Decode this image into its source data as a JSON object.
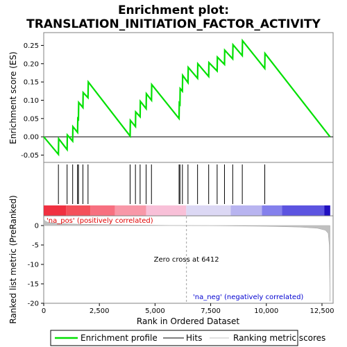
{
  "chart_data": {
    "type": "line",
    "title_line1": "Enrichment plot:",
    "title_line2": "TRANSLATION_INITIATION_FACTOR_ACTIVITY",
    "top_panel": {
      "ylabel": "Enrichment score (ES)",
      "ylim": [
        -0.07,
        0.285
      ],
      "yticks": [
        -0.05,
        0.0,
        0.05,
        0.1,
        0.15,
        0.2,
        0.25
      ],
      "ytick_labels": [
        "-0.05",
        "0.00",
        "0.05",
        "0.10",
        "0.15",
        "0.20",
        "0.25"
      ],
      "zero_line": true
    },
    "bottom_panel": {
      "ylabel": "Ranked list metric (PreRanked)",
      "xlabel": "Rank in Ordered Dataset",
      "ylim": [
        -20,
        2.5
      ],
      "yticks": [
        0,
        -5,
        -10,
        -15,
        -20
      ],
      "ytick_labels": [
        "0",
        "-5",
        "-10",
        "-15",
        "-20"
      ],
      "xlim": [
        0,
        13000
      ],
      "xticks": [
        0,
        2500,
        5000,
        7500,
        10000,
        12500
      ],
      "xtick_labels": [
        "0",
        "2,500",
        "5,000",
        "7,500",
        "10,000",
        "12,500"
      ],
      "zero_cross_rank": 6412,
      "zero_cross_label": "Zero cross at 6412",
      "pos_label": "'na_pos' (positively correlated)",
      "neg_label": "'na_neg' (negatively correlated)",
      "metric_profile": [
        {
          "x": 0,
          "y": 1.8
        },
        {
          "x": 50,
          "y": 1.2
        },
        {
          "x": 200,
          "y": 0.8
        },
        {
          "x": 600,
          "y": 0.55
        },
        {
          "x": 1500,
          "y": 0.35
        },
        {
          "x": 3000,
          "y": 0.2
        },
        {
          "x": 4500,
          "y": 0.1
        },
        {
          "x": 6412,
          "y": 0.0
        },
        {
          "x": 8000,
          "y": -0.08
        },
        {
          "x": 10000,
          "y": -0.2
        },
        {
          "x": 11500,
          "y": -0.4
        },
        {
          "x": 12300,
          "y": -0.7
        },
        {
          "x": 12650,
          "y": -1.2
        },
        {
          "x": 12780,
          "y": -2.0
        },
        {
          "x": 12830,
          "y": -5.0
        },
        {
          "x": 12860,
          "y": -19.5
        }
      ]
    },
    "series": [
      {
        "name": "Enrichment profile",
        "color": "#00e000",
        "points": [
          {
            "x": 0,
            "y": 0.0
          },
          {
            "x": 660,
            "y": -0.048
          },
          {
            "x": 670,
            "y": -0.005
          },
          {
            "x": 1050,
            "y": -0.035
          },
          {
            "x": 1060,
            "y": 0.005
          },
          {
            "x": 1300,
            "y": -0.012
          },
          {
            "x": 1310,
            "y": 0.028
          },
          {
            "x": 1520,
            "y": 0.012
          },
          {
            "x": 1530,
            "y": 0.05
          },
          {
            "x": 1560,
            "y": 0.048
          },
          {
            "x": 1570,
            "y": 0.094
          },
          {
            "x": 1760,
            "y": 0.08
          },
          {
            "x": 1770,
            "y": 0.121
          },
          {
            "x": 1990,
            "y": 0.107
          },
          {
            "x": 2000,
            "y": 0.15
          },
          {
            "x": 3880,
            "y": 0.002
          },
          {
            "x": 3890,
            "y": 0.045
          },
          {
            "x": 4120,
            "y": 0.028
          },
          {
            "x": 4130,
            "y": 0.068
          },
          {
            "x": 4330,
            "y": 0.055
          },
          {
            "x": 4340,
            "y": 0.097
          },
          {
            "x": 4600,
            "y": 0.077
          },
          {
            "x": 4610,
            "y": 0.118
          },
          {
            "x": 4840,
            "y": 0.1
          },
          {
            "x": 4850,
            "y": 0.143
          },
          {
            "x": 6080,
            "y": 0.05
          },
          {
            "x": 6090,
            "y": 0.092
          },
          {
            "x": 6120,
            "y": 0.089
          },
          {
            "x": 6130,
            "y": 0.132
          },
          {
            "x": 6230,
            "y": 0.125
          },
          {
            "x": 6240,
            "y": 0.168
          },
          {
            "x": 6480,
            "y": 0.148
          },
          {
            "x": 6490,
            "y": 0.19
          },
          {
            "x": 6910,
            "y": 0.16
          },
          {
            "x": 6920,
            "y": 0.2
          },
          {
            "x": 7410,
            "y": 0.165
          },
          {
            "x": 7420,
            "y": 0.203
          },
          {
            "x": 7790,
            "y": 0.18
          },
          {
            "x": 7800,
            "y": 0.218
          },
          {
            "x": 8120,
            "y": 0.198
          },
          {
            "x": 8130,
            "y": 0.237
          },
          {
            "x": 8490,
            "y": 0.213
          },
          {
            "x": 8500,
            "y": 0.252
          },
          {
            "x": 8920,
            "y": 0.222
          },
          {
            "x": 8930,
            "y": 0.263
          },
          {
            "x": 9930,
            "y": 0.187
          },
          {
            "x": 9940,
            "y": 0.228
          },
          {
            "x": 12860,
            "y": 0.0
          }
        ]
      }
    ],
    "hits": [
      660,
      1050,
      1300,
      1520,
      1560,
      1760,
      1990,
      3880,
      4120,
      4330,
      4600,
      4840,
      6080,
      6120,
      6230,
      6480,
      6910,
      7410,
      7790,
      8120,
      8490,
      8920,
      9930
    ],
    "heat_band": [
      {
        "x0": 0,
        "x1": 1000,
        "color": "#f03040"
      },
      {
        "x0": 1000,
        "x1": 2100,
        "color": "#f4505a"
      },
      {
        "x0": 2100,
        "x1": 3200,
        "color": "#f77080"
      },
      {
        "x0": 3200,
        "x1": 4600,
        "color": "#f898a8"
      },
      {
        "x0": 4600,
        "x1": 6400,
        "color": "#f8c0d8"
      },
      {
        "x0": 6400,
        "x1": 8400,
        "color": "#dcd8f4"
      },
      {
        "x0": 8400,
        "x1": 9800,
        "color": "#b8b4f0"
      },
      {
        "x0": 9800,
        "x1": 10700,
        "color": "#8480ec"
      },
      {
        "x0": 10700,
        "x1": 12600,
        "color": "#5c54e0"
      },
      {
        "x0": 12600,
        "x1": 12870,
        "color": "#2010c0"
      }
    ],
    "legend": [
      {
        "label": "Enrichment profile",
        "color": "#00e000",
        "style": "thick"
      },
      {
        "label": "Hits",
        "color": "#000000",
        "style": "thin"
      },
      {
        "label": "Ranking metric scores",
        "color": "#c0c0c0",
        "style": "thin"
      }
    ]
  }
}
